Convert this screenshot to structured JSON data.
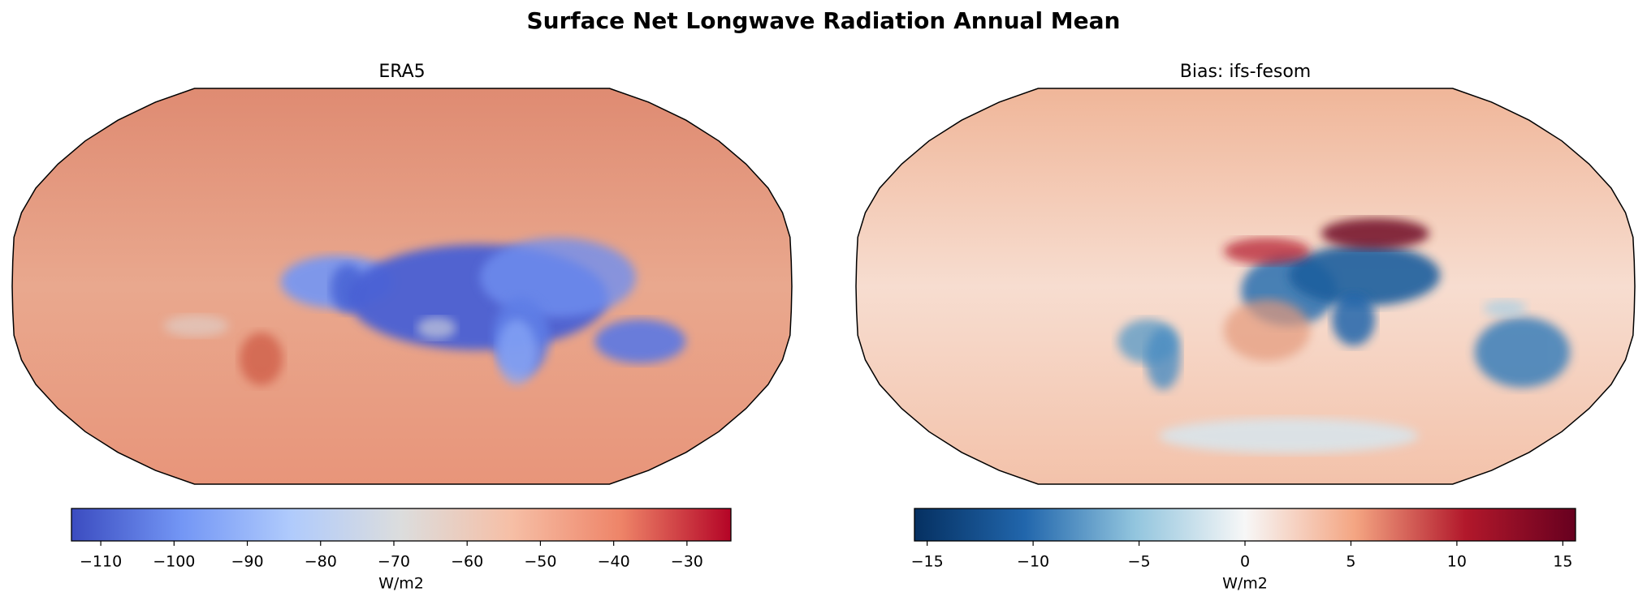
{
  "chart_data": [
    {
      "type": "map",
      "suptitle": "Surface Net Longwave Radiation Annual Mean",
      "title": "ERA5",
      "colorbar_label": "W/m2",
      "clim": [
        -114,
        -24
      ],
      "colors": [
        "#3b4cc0",
        "#7396f5",
        "#b0cbfc",
        "#dcdddd",
        "#f6bfa6",
        "#ee8468",
        "#b40426"
      ],
      "ticks": [
        {
          "value": -110,
          "label": "−110"
        },
        {
          "value": -100,
          "label": "−100"
        },
        {
          "value": -90,
          "label": "−90"
        },
        {
          "value": -80,
          "label": "−80"
        },
        {
          "value": -70,
          "label": "−70"
        },
        {
          "value": -60,
          "label": "−60"
        },
        {
          "value": -50,
          "label": "−50"
        },
        {
          "value": -40,
          "label": "−40"
        },
        {
          "value": -30,
          "label": "−30"
        }
      ]
    },
    {
      "type": "map",
      "title": "Bias: ifs-fesom",
      "colorbar_label": "W/m2",
      "clim": [
        -15.6,
        15.6
      ],
      "colors": [
        "#053061",
        "#2166ac",
        "#92c5de",
        "#f7f7f7",
        "#f4a582",
        "#b2182b",
        "#67001f"
      ],
      "ticks": [
        {
          "value": -15,
          "label": "−15"
        },
        {
          "value": -10,
          "label": "−10"
        },
        {
          "value": -5,
          "label": "−5"
        },
        0,
        5,
        10,
        15
      ]
    }
  ]
}
